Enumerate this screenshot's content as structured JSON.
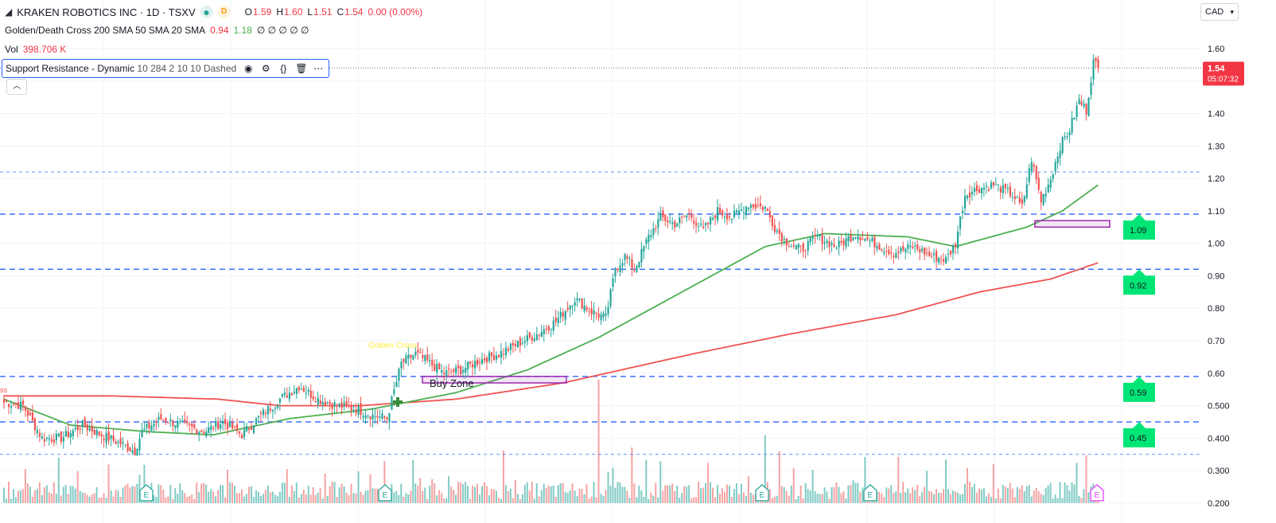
{
  "header": {
    "symbol_icon": "kraken-logo-icon",
    "title": "KRAKEN ROBOTICS INC · 1D · TSXV",
    "market_status": "D",
    "open_label": "O",
    "open": "1.59",
    "high_label": "H",
    "high": "1.60",
    "low_label": "L",
    "low": "1.51",
    "close_label": "C",
    "close": "1.54",
    "change": "0.00 (0.00%)"
  },
  "indicators": {
    "golden_cross": {
      "name": "Golden/Death Cross 200 SMA 50 SMA 20 SMA",
      "v1": "0.94",
      "v2": "1.18",
      "v_rest": "∅ ∅ ∅ ∅ ∅"
    },
    "volume": {
      "name": "Vol",
      "value": "398.706 K"
    },
    "support_resistance": {
      "name": "Support Resistance - Dynamic",
      "params": "10 284 2 10 10 Dashed"
    }
  },
  "currency": "CAD",
  "price_tag": {
    "value": "1.54",
    "countdown": "05:07:32"
  },
  "y_axis_ticks": [
    "1.60",
    "1.50",
    "1.40",
    "1.30",
    "1.20",
    "1.10",
    "1.00",
    "0.90",
    "0.80",
    "0.70",
    "0.60",
    "0.500",
    "0.400",
    "0.300",
    "0.200"
  ],
  "sr_labels": [
    "1.09",
    "0.92",
    "0.59",
    "0.45"
  ],
  "annotations": {
    "golden_cross": "Golden Cross",
    "buy_zone": "Buy Zone",
    "left_cut": "ss",
    "earnings": "E"
  },
  "colors": {
    "up": "#26a69a",
    "down": "#ef5350",
    "sma200": "#ef5350",
    "sma50": "#4caf50",
    "sr_line": "#2962ff",
    "sr_label_bg": "#00e676",
    "zone": "#9c27b0",
    "golden_cross_text": "#ffeb3b",
    "price_tag": "#f23645"
  },
  "chart_data": {
    "type": "candlestick",
    "title": "KRAKEN ROBOTICS INC · 1D · TSXV",
    "ylim": [
      0.2,
      1.65
    ],
    "support_resistance": [
      1.22,
      1.09,
      0.92,
      0.59,
      0.45,
      0.35
    ],
    "anchors": [
      [
        0,
        0.51
      ],
      [
        8,
        0.5
      ],
      [
        16,
        0.4
      ],
      [
        24,
        0.4
      ],
      [
        33,
        0.44
      ],
      [
        41,
        0.41
      ],
      [
        50,
        0.38
      ],
      [
        55,
        0.36
      ],
      [
        58,
        0.42
      ],
      [
        66,
        0.46
      ],
      [
        75,
        0.44
      ],
      [
        84,
        0.42
      ],
      [
        92,
        0.45
      ],
      [
        100,
        0.41
      ],
      [
        108,
        0.47
      ],
      [
        116,
        0.52
      ],
      [
        124,
        0.56
      ],
      [
        132,
        0.52
      ],
      [
        140,
        0.5
      ],
      [
        148,
        0.49
      ],
      [
        155,
        0.47
      ],
      [
        161,
        0.46
      ],
      [
        167,
        0.63
      ],
      [
        173,
        0.66
      ],
      [
        179,
        0.63
      ],
      [
        185,
        0.6
      ],
      [
        192,
        0.61
      ],
      [
        200,
        0.64
      ],
      [
        208,
        0.66
      ],
      [
        216,
        0.69
      ],
      [
        224,
        0.72
      ],
      [
        232,
        0.76
      ],
      [
        240,
        0.83
      ],
      [
        247,
        0.79
      ],
      [
        253,
        0.77
      ],
      [
        257,
        0.92
      ],
      [
        261,
        0.96
      ],
      [
        265,
        0.92
      ],
      [
        271,
        1.02
      ],
      [
        276,
        1.08
      ],
      [
        282,
        1.06
      ],
      [
        288,
        1.09
      ],
      [
        294,
        1.04
      ],
      [
        300,
        1.1
      ],
      [
        306,
        1.08
      ],
      [
        313,
        1.12
      ],
      [
        320,
        1.11
      ],
      [
        324,
        1.05
      ],
      [
        328,
        1.01
      ],
      [
        335,
        0.98
      ],
      [
        342,
        1.02
      ],
      [
        350,
        0.99
      ],
      [
        358,
        1.03
      ],
      [
        366,
        1.0
      ],
      [
        374,
        0.97
      ],
      [
        382,
        0.99
      ],
      [
        390,
        0.96
      ],
      [
        396,
        0.95
      ],
      [
        400,
        1.0
      ],
      [
        404,
        1.15
      ],
      [
        410,
        1.17
      ],
      [
        416,
        1.18
      ],
      [
        424,
        1.15
      ],
      [
        428,
        1.11
      ],
      [
        432,
        1.26
      ],
      [
        436,
        1.13
      ],
      [
        440,
        1.2
      ],
      [
        444,
        1.3
      ],
      [
        448,
        1.35
      ],
      [
        452,
        1.44
      ],
      [
        455,
        1.41
      ],
      [
        458,
        1.56
      ],
      [
        460,
        1.54
      ]
    ],
    "sma200": [
      [
        0,
        0.53
      ],
      [
        45,
        0.53
      ],
      [
        90,
        0.52
      ],
      [
        116,
        0.5
      ],
      [
        150,
        0.5
      ],
      [
        190,
        0.52
      ],
      [
        235,
        0.57
      ],
      [
        290,
        0.66
      ],
      [
        330,
        0.72
      ],
      [
        375,
        0.78
      ],
      [
        410,
        0.85
      ],
      [
        440,
        0.89
      ],
      [
        460,
        0.94
      ]
    ],
    "sma50": [
      [
        0,
        0.52
      ],
      [
        28,
        0.44
      ],
      [
        60,
        0.42
      ],
      [
        88,
        0.41
      ],
      [
        120,
        0.46
      ],
      [
        155,
        0.49
      ],
      [
        190,
        0.54
      ],
      [
        220,
        0.61
      ],
      [
        250,
        0.71
      ],
      [
        270,
        0.79
      ],
      [
        300,
        0.91
      ],
      [
        320,
        0.99
      ],
      [
        345,
        1.03
      ],
      [
        380,
        1.02
      ],
      [
        400,
        0.99
      ],
      [
        430,
        1.05
      ],
      [
        445,
        1.1
      ],
      [
        460,
        1.18
      ]
    ],
    "volume": {
      "earnings_markers": 8,
      "spikes": [
        "0.36 M",
        "0.38 M",
        "0.58 M"
      ]
    },
    "zones": [
      {
        "name": "Buy Zone",
        "low": 0.57,
        "high": 0.59
      },
      {
        "name": "",
        "low": 1.05,
        "high": 1.07
      }
    ]
  }
}
